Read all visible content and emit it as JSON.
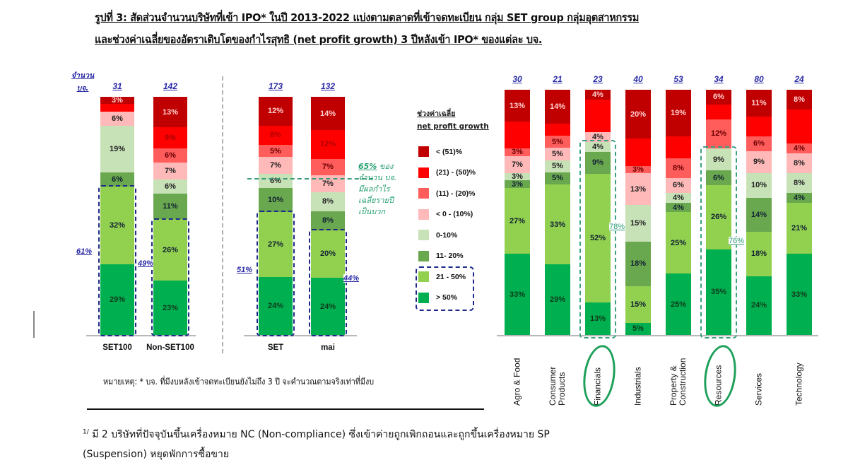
{
  "title": {
    "line1": "รูปที่ 3: สัดส่วนจำนวนบริษัทที่เข้า IPO* ในปี 2013-2022 แบ่งตามตลาดที่เข้าจดทะเบียน กลุ่ม SET group กลุ่มอุตสาหกรรม",
    "line2": "และช่วงค่าเฉลี่ยของอัตราเติบโตของกำไรสุทธิ (net profit growth) 3 ปีหลังเข้า IPO* ของแต่ละ บจ."
  },
  "left_panel": {
    "count_label": [
      "จำนวน",
      "บจ."
    ],
    "group_markers": {
      "set100_nonset100_divider": true
    },
    "annotation_65": {
      "pct": "65%",
      "text_after_pct": " ของ",
      "lines": [
        "จำนวน บจ.",
        "มีผลกำไร",
        "เฉลี่ยรายปี",
        "เป็นบวก"
      ]
    }
  },
  "legend": {
    "title_line1": "ช่วงค่าเฉลี่ย",
    "title_line2": "net profit growth",
    "items": [
      {
        "label": "< (51)%",
        "color": "#c00000"
      },
      {
        "label": "(21) - (50)%",
        "color": "#ff0000"
      },
      {
        "label": "(11) - (20)%",
        "color": "#ff5c5c"
      },
      {
        "label": "< 0 - (10%)",
        "color": "#ffb9b9"
      },
      {
        "label": "0-10%",
        "color": "#c8e2b8"
      },
      {
        "label": "11- 20%",
        "color": "#6aa84f"
      },
      {
        "label": "21 - 50%",
        "color": "#92d050"
      },
      {
        "label": "> 50%",
        "color": "#00b050"
      }
    ]
  },
  "chart_data": [
    {
      "type": "bar",
      "stacked": true,
      "normalized": true,
      "title": "สัดส่วนจำนวนบริษัทที่เข้า IPO แบ่งตาม SET100 / Non-SET100 และ SET / mai",
      "ylabel": "จำนวน บจ.",
      "categories": [
        "SET100",
        "Non-SET100",
        "SET",
        "mai"
      ],
      "counts": [
        "31",
        "142",
        "173",
        "132"
      ],
      "bucket_order": [
        "< (51)%",
        "(21) - (50)%",
        "(11) - (20)%",
        "< 0 - (10%)",
        "0-10%",
        "11- 20%",
        "21 - 50%",
        "> 50%"
      ],
      "series": [
        {
          "name": "< (51)%",
          "values": [
            3,
            13,
            12,
            14
          ]
        },
        {
          "name": "(21) - (50)%",
          "values": [
            3,
            9,
            8,
            12
          ]
        },
        {
          "name": "(11) - (20)%",
          "values": [
            0,
            6,
            5,
            7
          ]
        },
        {
          "name": "< 0 - (10%)",
          "values": [
            6,
            7,
            7,
            7
          ]
        },
        {
          "name": "0-10%",
          "values": [
            19,
            6,
            6,
            8
          ]
        },
        {
          "name": "11- 20%",
          "values": [
            6,
            11,
            10,
            8
          ]
        },
        {
          "name": "21 - 50%",
          "values": [
            32,
            26,
            27,
            20
          ]
        },
        {
          "name": "> 50%",
          "values": [
            29,
            23,
            24,
            24
          ]
        }
      ],
      "hidden_labels": {
        "SET100": [
          "(21) - (50)%"
        ]
      },
      "box_annotations": [
        {
          "category": "SET100",
          "label": "61%",
          "buckets": [
            "21 - 50%",
            "> 50%"
          ]
        },
        {
          "category": "Non-SET100",
          "label": "49%",
          "buckets": [
            "21 - 50%",
            "> 50%"
          ]
        },
        {
          "category": "SET",
          "label": "51%",
          "buckets": [
            "21 - 50%",
            "> 50%"
          ]
        },
        {
          "category": "mai",
          "label": "44%",
          "buckets": [
            "21 - 50%",
            "> 50%"
          ]
        }
      ],
      "ylim": [
        0,
        100
      ],
      "grid": false
    },
    {
      "type": "bar",
      "stacked": true,
      "normalized": true,
      "title": "สัดส่วนจำนวนบริษัทที่เข้า IPO แบ่งตามกลุ่มอุตสาหกรรม",
      "categories": [
        "Agro & Food",
        "Consumer Products",
        "Financials",
        "Industrials",
        "Property & Construction",
        "Resources",
        "Services",
        "Technology"
      ],
      "counts": [
        "30",
        "21",
        "23",
        "40",
        "53",
        "34",
        "80",
        "24"
      ],
      "series": [
        {
          "name": "< (51)%",
          "values": [
            13,
            14,
            4,
            20,
            19,
            6,
            11,
            8
          ]
        },
        {
          "name": "(21) - (50)%",
          "values": [
            11,
            5,
            13,
            11,
            9,
            6,
            8,
            14
          ]
        },
        {
          "name": "(11) - (20)%",
          "values": [
            3,
            5,
            0,
            3,
            8,
            12,
            6,
            4
          ]
        },
        {
          "name": "< 0 - (10%)",
          "values": [
            7,
            5,
            4,
            13,
            6,
            0,
            9,
            8
          ]
        },
        {
          "name": "0-10%",
          "values": [
            3,
            5,
            4,
            15,
            4,
            9,
            10,
            8
          ]
        },
        {
          "name": "11- 20%",
          "values": [
            3,
            5,
            9,
            18,
            4,
            6,
            14,
            4
          ]
        },
        {
          "name": "21 - 50%",
          "values": [
            27,
            33,
            52,
            15,
            25,
            26,
            18,
            21
          ]
        },
        {
          "name": "> 50%",
          "values": [
            33,
            29,
            13,
            5,
            25,
            35,
            24,
            33
          ]
        }
      ],
      "hidden_labels_note": "(21) - (50)% values are not legible in the image and are estimated as the remainder to 100%",
      "box_annotations": [
        {
          "category": "Financials",
          "label": "78%",
          "buckets": [
            "0-10%",
            "11- 20%",
            "21 - 50%",
            "> 50%"
          ]
        },
        {
          "category": "Resources",
          "label": "76%",
          "buckets": [
            "0-10%",
            "11- 20%",
            "21 - 50%",
            "> 50%"
          ]
        }
      ],
      "circled_categories": [
        "Financials",
        "Resources"
      ],
      "ylim": [
        0,
        100
      ],
      "grid": false
    }
  ],
  "left_bars": [
    {
      "name": "SET100",
      "count": "31",
      "segs": [
        {
          "v": 3,
          "c": "#c00000",
          "t": "3%",
          "tc": "#ffd0d0"
        },
        {
          "v": 3,
          "c": "#ff0000",
          "t": "",
          "tc": "#b00000"
        },
        {
          "v": 6,
          "c": "#ffb9b9",
          "t": "6%",
          "tc": "#222"
        },
        {
          "v": 19,
          "c": "#c8e2b8",
          "t": "19%",
          "tc": "#222"
        },
        {
          "v": 6,
          "c": "#6aa84f",
          "t": "6%",
          "tc": "#123"
        },
        {
          "v": 32,
          "c": "#92d050",
          "t": "32%",
          "tc": "#123"
        },
        {
          "v": 29,
          "c": "#00b050",
          "t": "29%",
          "tc": "#0d3a1a"
        }
      ]
    },
    {
      "name": "Non-SET100",
      "count": "142",
      "segs": [
        {
          "v": 13,
          "c": "#c00000",
          "t": "13%",
          "tc": "#ffd0d0"
        },
        {
          "v": 9,
          "c": "#ff0000",
          "t": "9%",
          "tc": "#b00000"
        },
        {
          "v": 6,
          "c": "#ff5c5c",
          "t": "6%",
          "tc": "#6a0000"
        },
        {
          "v": 7,
          "c": "#ffb9b9",
          "t": "7%",
          "tc": "#222"
        },
        {
          "v": 6,
          "c": "#c8e2b8",
          "t": "6%",
          "tc": "#222"
        },
        {
          "v": 11,
          "c": "#6aa84f",
          "t": "11%",
          "tc": "#123"
        },
        {
          "v": 26,
          "c": "#92d050",
          "t": "26%",
          "tc": "#123"
        },
        {
          "v": 23,
          "c": "#00b050",
          "t": "23%",
          "tc": "#0d3a1a"
        }
      ]
    },
    {
      "name": "SET",
      "count": "173",
      "segs": [
        {
          "v": 12,
          "c": "#c00000",
          "t": "12%",
          "tc": "#ffd0d0"
        },
        {
          "v": 8,
          "c": "#ff0000",
          "t": "8%",
          "tc": "#b00000"
        },
        {
          "v": 5,
          "c": "#ff5c5c",
          "t": "5%",
          "tc": "#6a0000"
        },
        {
          "v": 7,
          "c": "#ffb9b9",
          "t": "7%",
          "tc": "#222"
        },
        {
          "v": 6,
          "c": "#c8e2b8",
          "t": "6%",
          "tc": "#222"
        },
        {
          "v": 10,
          "c": "#6aa84f",
          "t": "10%",
          "tc": "#123"
        },
        {
          "v": 27,
          "c": "#92d050",
          "t": "27%",
          "tc": "#123"
        },
        {
          "v": 24,
          "c": "#00b050",
          "t": "24%",
          "tc": "#0d3a1a"
        }
      ]
    },
    {
      "name": "mai",
      "count": "132",
      "segs": [
        {
          "v": 14,
          "c": "#c00000",
          "t": "14%",
          "tc": "#ffd0d0"
        },
        {
          "v": 12,
          "c": "#ff0000",
          "t": "12%",
          "tc": "#b00000"
        },
        {
          "v": 7,
          "c": "#ff5c5c",
          "t": "7%",
          "tc": "#6a0000"
        },
        {
          "v": 7,
          "c": "#ffb9b9",
          "t": "7%",
          "tc": "#222"
        },
        {
          "v": 8,
          "c": "#c8e2b8",
          "t": "8%",
          "tc": "#222"
        },
        {
          "v": 8,
          "c": "#6aa84f",
          "t": "8%",
          "tc": "#123"
        },
        {
          "v": 20,
          "c": "#92d050",
          "t": "20%",
          "tc": "#123"
        },
        {
          "v": 24,
          "c": "#00b050",
          "t": "24%",
          "tc": "#0d3a1a"
        }
      ]
    }
  ],
  "right_bars": [
    {
      "name": "Agro & Food",
      "count": "30",
      "segs": [
        {
          "v": 13,
          "c": "#c00000",
          "t": "13%",
          "tc": "#ffd0d0"
        },
        {
          "v": 11,
          "c": "#ff0000",
          "t": "",
          "tc": "#b00000"
        },
        {
          "v": 3,
          "c": "#ff5c5c",
          "t": "3%",
          "tc": "#6a0000"
        },
        {
          "v": 7,
          "c": "#ffb9b9",
          "t": "7%",
          "tc": "#222"
        },
        {
          "v": 3,
          "c": "#c8e2b8",
          "t": "3%",
          "tc": "#222"
        },
        {
          "v": 3,
          "c": "#6aa84f",
          "t": "3%",
          "tc": "#123"
        },
        {
          "v": 27,
          "c": "#92d050",
          "t": "27%",
          "tc": "#123"
        },
        {
          "v": 33,
          "c": "#00b050",
          "t": "33%",
          "tc": "#0d3a1a"
        }
      ]
    },
    {
      "name": "Consumer Products",
      "count": "21",
      "segs": [
        {
          "v": 14,
          "c": "#c00000",
          "t": "14%",
          "tc": "#ffd0d0"
        },
        {
          "v": 5,
          "c": "#ff0000",
          "t": "",
          "tc": "#b00000"
        },
        {
          "v": 5,
          "c": "#ff5c5c",
          "t": "5%",
          "tc": "#6a0000"
        },
        {
          "v": 5,
          "c": "#ffb9b9",
          "t": "5%",
          "tc": "#222"
        },
        {
          "v": 5,
          "c": "#c8e2b8",
          "t": "5%",
          "tc": "#222"
        },
        {
          "v": 5,
          "c": "#6aa84f",
          "t": "5%",
          "tc": "#123"
        },
        {
          "v": 33,
          "c": "#92d050",
          "t": "33%",
          "tc": "#123"
        },
        {
          "v": 29,
          "c": "#00b050",
          "t": "29%",
          "tc": "#0d3a1a"
        }
      ]
    },
    {
      "name": "Financials",
      "count": "23",
      "segs": [
        {
          "v": 4,
          "c": "#c00000",
          "t": "4%",
          "tc": "#ffd0d0"
        },
        {
          "v": 13,
          "c": "#ff0000",
          "t": "",
          "tc": "#b00000"
        },
        {
          "v": 4,
          "c": "#ffb9b9",
          "t": "4%",
          "tc": "#222"
        },
        {
          "v": 4,
          "c": "#c8e2b8",
          "t": "4%",
          "tc": "#222"
        },
        {
          "v": 9,
          "c": "#6aa84f",
          "t": "9%",
          "tc": "#123"
        },
        {
          "v": 52,
          "c": "#92d050",
          "t": "52%",
          "tc": "#123"
        },
        {
          "v": 13,
          "c": "#00b050",
          "t": "13%",
          "tc": "#0d3a1a"
        }
      ]
    },
    {
      "name": "Industrials",
      "count": "40",
      "segs": [
        {
          "v": 20,
          "c": "#c00000",
          "t": "20%",
          "tc": "#ffd0d0"
        },
        {
          "v": 11,
          "c": "#ff0000",
          "t": "",
          "tc": "#b00000"
        },
        {
          "v": 3,
          "c": "#ff5c5c",
          "t": "3%",
          "tc": "#6a0000"
        },
        {
          "v": 13,
          "c": "#ffb9b9",
          "t": "13%",
          "tc": "#222"
        },
        {
          "v": 15,
          "c": "#c8e2b8",
          "t": "15%",
          "tc": "#222"
        },
        {
          "v": 18,
          "c": "#6aa84f",
          "t": "18%",
          "tc": "#123"
        },
        {
          "v": 15,
          "c": "#92d050",
          "t": "15%",
          "tc": "#123"
        },
        {
          "v": 5,
          "c": "#00b050",
          "t": "5%",
          "tc": "#0d3a1a"
        }
      ]
    },
    {
      "name": "Property & Construction",
      "count": "53",
      "segs": [
        {
          "v": 19,
          "c": "#c00000",
          "t": "19%",
          "tc": "#ffd0d0"
        },
        {
          "v": 9,
          "c": "#ff0000",
          "t": "",
          "tc": "#b00000"
        },
        {
          "v": 8,
          "c": "#ff5c5c",
          "t": "8%",
          "tc": "#6a0000"
        },
        {
          "v": 6,
          "c": "#ffb9b9",
          "t": "6%",
          "tc": "#222"
        },
        {
          "v": 4,
          "c": "#c8e2b8",
          "t": "4%",
          "tc": "#222"
        },
        {
          "v": 4,
          "c": "#6aa84f",
          "t": "4%",
          "tc": "#123"
        },
        {
          "v": 25,
          "c": "#92d050",
          "t": "25%",
          "tc": "#123"
        },
        {
          "v": 25,
          "c": "#00b050",
          "t": "25%",
          "tc": "#0d3a1a"
        }
      ]
    },
    {
      "name": "Resources",
      "count": "34",
      "segs": [
        {
          "v": 6,
          "c": "#c00000",
          "t": "6%",
          "tc": "#ffd0d0"
        },
        {
          "v": 6,
          "c": "#ff0000",
          "t": "",
          "tc": "#b00000"
        },
        {
          "v": 12,
          "c": "#ff5c5c",
          "t": "12%",
          "tc": "#6a0000"
        },
        {
          "v": 9,
          "c": "#c8e2b8",
          "t": "9%",
          "tc": "#222"
        },
        {
          "v": 6,
          "c": "#6aa84f",
          "t": "6%",
          "tc": "#123"
        },
        {
          "v": 26,
          "c": "#92d050",
          "t": "26%",
          "tc": "#123"
        },
        {
          "v": 35,
          "c": "#00b050",
          "t": "35%",
          "tc": "#0d3a1a"
        }
      ]
    },
    {
      "name": "Services",
      "count": "80",
      "segs": [
        {
          "v": 11,
          "c": "#c00000",
          "t": "11%",
          "tc": "#ffd0d0"
        },
        {
          "v": 8,
          "c": "#ff0000",
          "t": "",
          "tc": "#b00000"
        },
        {
          "v": 6,
          "c": "#ff5c5c",
          "t": "6%",
          "tc": "#6a0000"
        },
        {
          "v": 9,
          "c": "#ffb9b9",
          "t": "9%",
          "tc": "#222"
        },
        {
          "v": 10,
          "c": "#c8e2b8",
          "t": "10%",
          "tc": "#222"
        },
        {
          "v": 14,
          "c": "#6aa84f",
          "t": "14%",
          "tc": "#123"
        },
        {
          "v": 18,
          "c": "#92d050",
          "t": "18%",
          "tc": "#123"
        },
        {
          "v": 24,
          "c": "#00b050",
          "t": "24%",
          "tc": "#0d3a1a"
        }
      ]
    },
    {
      "name": "Technology",
      "count": "24",
      "segs": [
        {
          "v": 8,
          "c": "#c00000",
          "t": "8%",
          "tc": "#ffd0d0"
        },
        {
          "v": 14,
          "c": "#ff0000",
          "t": "",
          "tc": "#b00000"
        },
        {
          "v": 4,
          "c": "#ff5c5c",
          "t": "4%",
          "tc": "#6a0000"
        },
        {
          "v": 8,
          "c": "#ffb9b9",
          "t": "8%",
          "tc": "#222"
        },
        {
          "v": 8,
          "c": "#c8e2b8",
          "t": "8%",
          "tc": "#222"
        },
        {
          "v": 4,
          "c": "#6aa84f",
          "t": "4%",
          "tc": "#123"
        },
        {
          "v": 21,
          "c": "#92d050",
          "t": "21%",
          "tc": "#123"
        },
        {
          "v": 33,
          "c": "#00b050",
          "t": "33%",
          "tc": "#0d3a1a"
        }
      ]
    }
  ],
  "sector_labels": [
    [
      "Agro & Food"
    ],
    [
      "Consumer",
      "Products"
    ],
    [
      "Financials"
    ],
    [
      "Industrials"
    ],
    [
      "Property &",
      "Construction"
    ],
    [
      "Resources"
    ],
    [
      "Services"
    ],
    [
      "Technology"
    ]
  ],
  "box_labels": {
    "set100": "61%",
    "nonset100": "49%",
    "set": "51%",
    "mai": "44%",
    "financials": "78%",
    "resources": "76%"
  },
  "footnotes": {
    "remark": "หมายเหตุ: * บจ. ที่มีงบหลังเข้าจดทะเบียนยังไม่ถึง 3 ปี จะคำนวณตามจริงเท่าที่มีงบ",
    "note1_marker": "1/",
    "note1_line1": " มี 2 บริษัทที่ปัจจุบันขึ้นเครื่องหมาย NC (Non-compliance) ซึ่งเข้าค่ายถูกเพิกถอนและถูกขึ้นเครื่องหมาย  SP",
    "note1_line2": "(Suspension) หยุดพักการซื้อขาย"
  }
}
